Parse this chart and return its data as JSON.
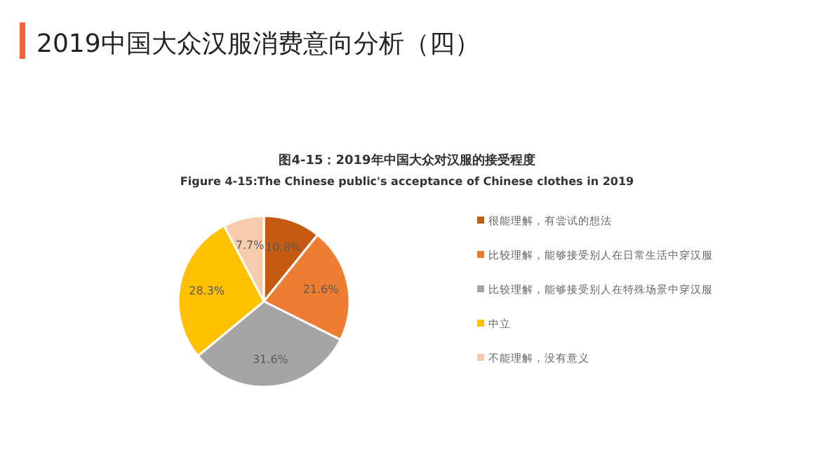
{
  "chart_data": {
    "type": "pie",
    "title": "2019中国大众汉服消费意向分析（四）",
    "subtitle": "图4-15：2019年中国大众对汉服的接受程度",
    "annotations": [
      "Figure 4-15:The Chinese public's acceptance of Chinese clothes in 2019"
    ],
    "categories": [
      "很能理解，有尝试的想法",
      "比较理解，能够接受别人在日常生活中穿汉服",
      "比较理解，能够接受别人在特殊场景中穿汉服",
      "中立",
      "不能理解，没有意义"
    ],
    "values": [
      10.8,
      21.6,
      31.6,
      28.3,
      7.7
    ],
    "value_labels": [
      "10.8%",
      "21.6%",
      "31.6%",
      "28.3%",
      "7.7%"
    ],
    "colors": [
      "#c55a11",
      "#ed7d31",
      "#a5a5a5",
      "#ffc000",
      "#f8cbad"
    ],
    "legend": "right"
  }
}
